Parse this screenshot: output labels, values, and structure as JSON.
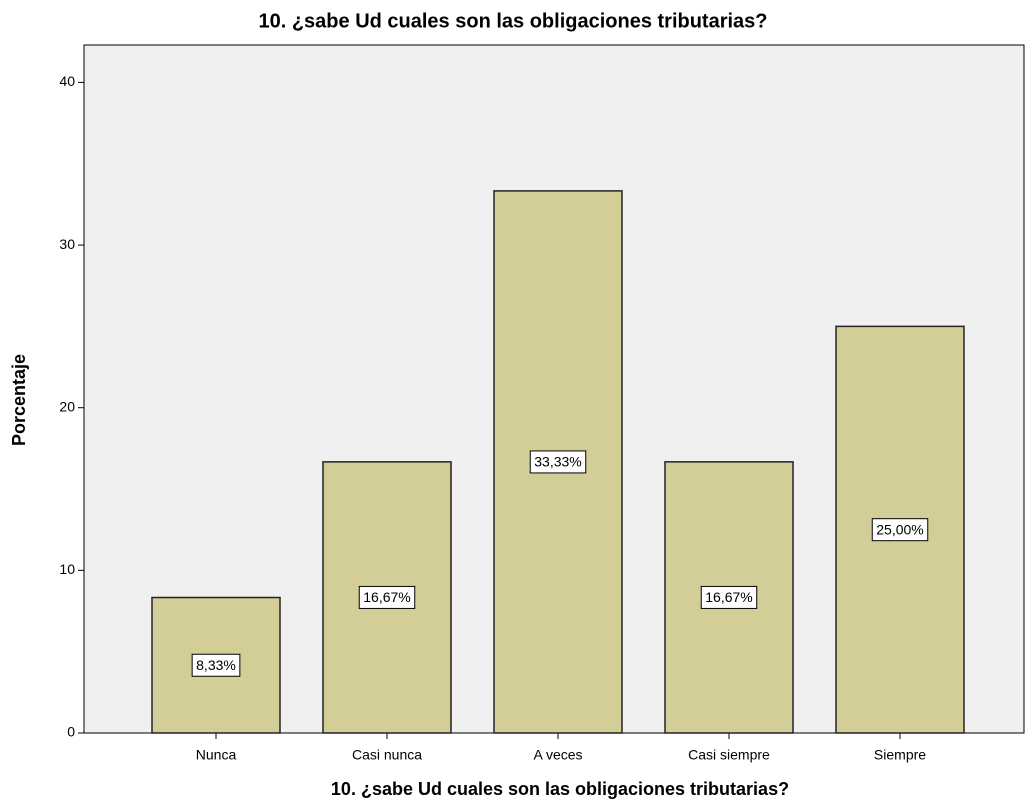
{
  "chart_data": {
    "type": "bar",
    "title": "10. ¿sabe Ud  cuales son las obligaciones tributarias?",
    "xlabel": "10. ¿sabe Ud  cuales son las obligaciones tributarias?",
    "ylabel": "Porcentaje",
    "categories": [
      "Nunca",
      "Casi nunca",
      "A veces",
      "Casi siempre",
      "Siempre"
    ],
    "values": [
      8.33,
      16.67,
      33.33,
      16.67,
      25.0
    ],
    "value_labels": [
      "8,33%",
      "16,67%",
      "33,33%",
      "16,67%",
      "25,00%"
    ],
    "color": "#d3ce97",
    "ylim": [
      0,
      42.3
    ],
    "yticks": [
      0,
      10,
      20,
      30,
      40
    ],
    "grid": false
  }
}
